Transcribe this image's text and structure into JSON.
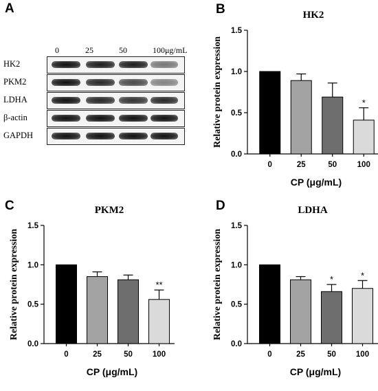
{
  "panels": {
    "A": "A",
    "B": "B",
    "C": "C",
    "D": "D"
  },
  "blot": {
    "concentrations": [
      "0",
      "25",
      "50",
      "100μg/mL"
    ],
    "rows": [
      {
        "label": "HK2",
        "intensity": [
          1.0,
          0.95,
          0.95,
          0.55
        ]
      },
      {
        "label": "PKM2",
        "intensity": [
          1.0,
          0.9,
          0.75,
          0.5
        ]
      },
      {
        "label": "LDHA",
        "intensity": [
          1.0,
          0.9,
          0.85,
          0.9
        ]
      },
      {
        "label": "β-actin",
        "intensity": [
          1.0,
          1.0,
          1.0,
          1.0
        ]
      },
      {
        "label": "GAPDH",
        "intensity": [
          1.0,
          1.0,
          1.0,
          1.0
        ]
      }
    ]
  },
  "chart_data": [
    {
      "type": "bar",
      "panel": "B",
      "title": "HK2",
      "categories": [
        "0",
        "25",
        "50",
        "100"
      ],
      "values": [
        1.0,
        0.89,
        0.69,
        0.41
      ],
      "errors": [
        0,
        0.08,
        0.17,
        0.15
      ],
      "significance": [
        "",
        "",
        "",
        "*"
      ],
      "colors": [
        "#000000",
        "#a3a3a3",
        "#6e6e6e",
        "#dadada"
      ],
      "xlabel": "CP (μg/mL)",
      "ylabel": "Relative protein expression",
      "ylim": [
        0,
        1.5
      ],
      "yticks": [
        "0.0",
        "0.5",
        "1.0",
        "1.5"
      ]
    },
    {
      "type": "bar",
      "panel": "C",
      "title": "PKM2",
      "categories": [
        "0",
        "25",
        "50",
        "100"
      ],
      "values": [
        1.0,
        0.85,
        0.81,
        0.56
      ],
      "errors": [
        0,
        0.06,
        0.06,
        0.12
      ],
      "significance": [
        "",
        "",
        "",
        "**"
      ],
      "colors": [
        "#000000",
        "#a3a3a3",
        "#6e6e6e",
        "#dadada"
      ],
      "xlabel": "CP (μg/mL)",
      "ylabel": "Relative protein expression",
      "ylim": [
        0,
        1.5
      ],
      "yticks": [
        "0.0",
        "0.5",
        "1.0",
        "1.5"
      ]
    },
    {
      "type": "bar",
      "panel": "D",
      "title": "LDHA",
      "categories": [
        "0",
        "25",
        "50",
        "100"
      ],
      "values": [
        1.0,
        0.81,
        0.66,
        0.7
      ],
      "errors": [
        0,
        0.04,
        0.09,
        0.1
      ],
      "significance": [
        "",
        "",
        "*",
        "*"
      ],
      "colors": [
        "#000000",
        "#a3a3a3",
        "#6e6e6e",
        "#dadada"
      ],
      "xlabel": "CP (μg/mL)",
      "ylabel": "Relative protein expression",
      "ylim": [
        0,
        1.5
      ],
      "yticks": [
        "0.0",
        "0.5",
        "1.0",
        "1.5"
      ]
    }
  ]
}
